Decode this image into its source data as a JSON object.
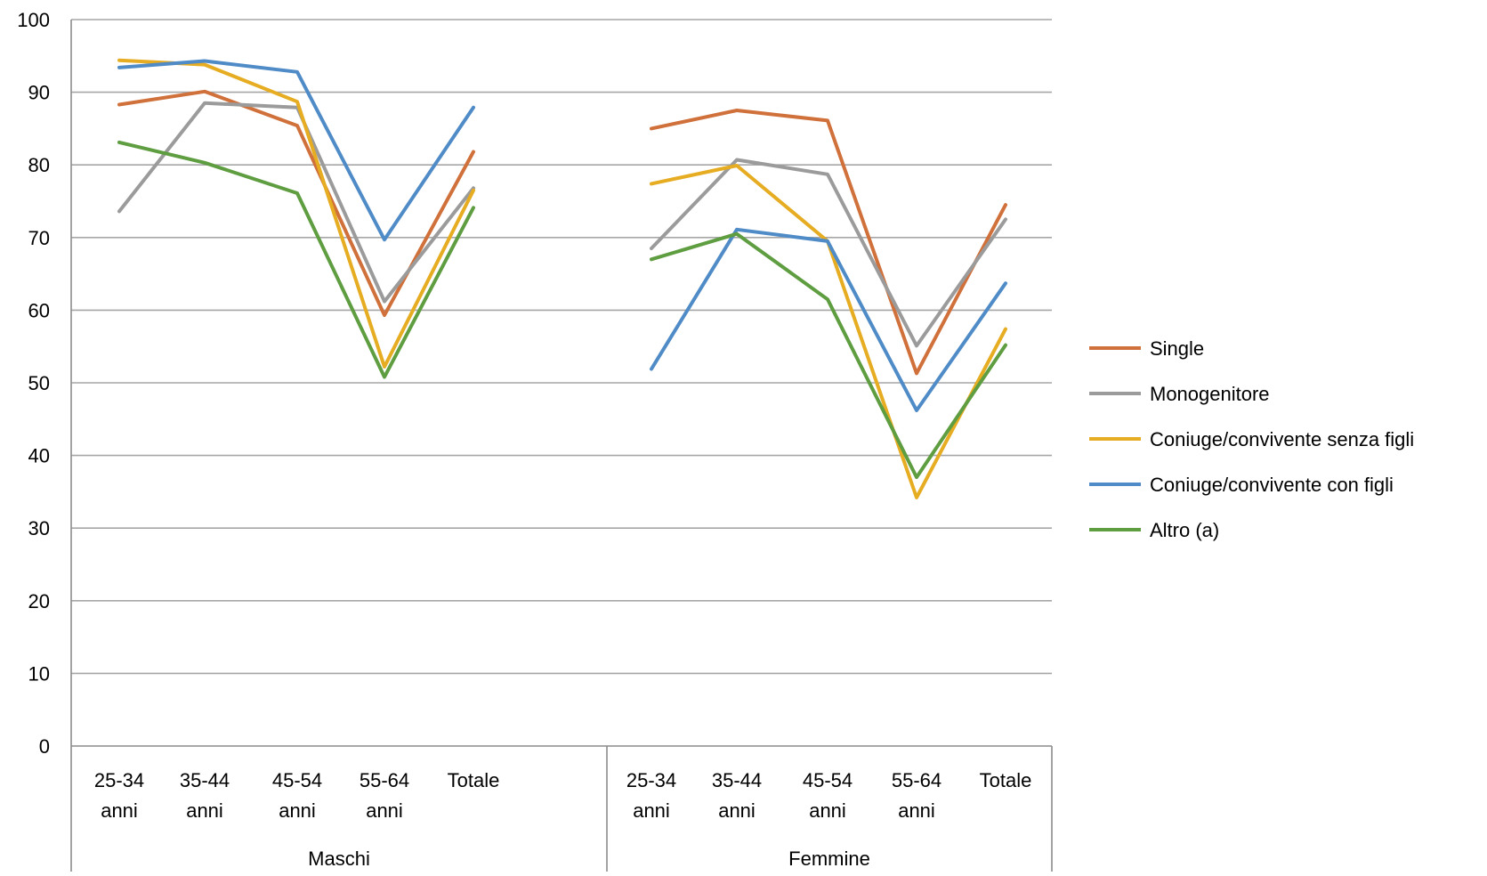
{
  "chart_data": {
    "type": "line",
    "title": "",
    "xlabel": "",
    "ylabel": "",
    "ylim": [
      0,
      100
    ],
    "yticks": [
      0,
      10,
      20,
      30,
      40,
      50,
      60,
      70,
      80,
      90,
      100
    ],
    "grid": true,
    "legend_position": "right",
    "groups": [
      {
        "label": "Maschi",
        "categories": [
          [
            "25-34",
            "anni"
          ],
          [
            "35-44",
            "anni"
          ],
          [
            "45-54",
            "anni"
          ],
          [
            "55-64",
            "anni"
          ],
          [
            "Totale"
          ]
        ]
      },
      {
        "label": "Femmine",
        "categories": [
          [
            "25-34",
            "anni"
          ],
          [
            "35-44",
            "anni"
          ],
          [
            "45-54",
            "anni"
          ],
          [
            "55-64",
            "anni"
          ],
          [
            "Totale"
          ]
        ]
      }
    ],
    "series": [
      {
        "name": "Single",
        "color": "#d0703a",
        "values": [
          [
            88.3,
            90.1,
            85.4,
            59.3,
            81.8
          ],
          [
            85.0,
            87.5,
            86.1,
            51.3,
            74.5
          ]
        ]
      },
      {
        "name": "Monogenitore",
        "color": "#9b9b9b",
        "values": [
          [
            73.6,
            88.5,
            87.9,
            61.2,
            76.8
          ],
          [
            68.5,
            80.7,
            78.7,
            55.1,
            72.5
          ]
        ]
      },
      {
        "name": "Coniuge/convivente senza figli",
        "color": "#e6ac22",
        "values": [
          [
            94.4,
            93.8,
            88.7,
            52.2,
            76.5
          ],
          [
            77.4,
            79.9,
            69.5,
            34.2,
            57.4
          ]
        ]
      },
      {
        "name": "Coniuge/convivente con figli",
        "color": "#4f8bc6",
        "values": [
          [
            93.4,
            94.3,
            92.8,
            69.7,
            87.9
          ],
          [
            51.9,
            71.1,
            69.5,
            46.2,
            63.7
          ]
        ]
      },
      {
        "name": "Altro (a)",
        "color": "#5f9d41",
        "values": [
          [
            83.1,
            80.3,
            76.1,
            50.8,
            74.1
          ],
          [
            67.0,
            70.5,
            61.5,
            37.0,
            55.2
          ]
        ]
      }
    ]
  }
}
